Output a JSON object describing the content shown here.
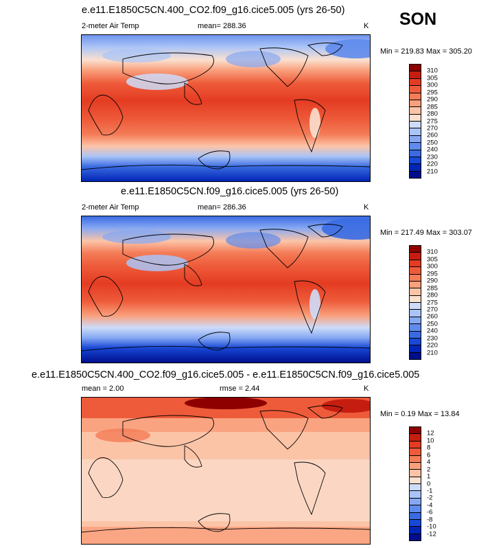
{
  "season": "SON",
  "colors": {
    "abs": [
      "#000e8c",
      "#0025b5",
      "#1848d6",
      "#3a6be2",
      "#5f8bec",
      "#86a8f2",
      "#aac4f7",
      "#cedcf9",
      "#fbe0cf",
      "#fcc4a7",
      "#f9a07d",
      "#f47c58",
      "#ee5b3a",
      "#e43c22",
      "#c51e10",
      "#8e0000"
    ],
    "diff": [
      "#000e8c",
      "#0025b5",
      "#1848d6",
      "#3a6be2",
      "#5f8bec",
      "#86a8f2",
      "#aac4f7",
      "#cedcf9",
      "#fbe0cf",
      "#fcc4a7",
      "#f9a07d",
      "#f47c58",
      "#ee5b3a",
      "#e43c22",
      "#c51e10",
      "#8e0000"
    ]
  },
  "panels": [
    {
      "title": "e.e11.E1850C5CN.400_CO2.f09_g16.cice5.005 (yrs 26-50)",
      "left_label": "2-meter Air Temp",
      "mean_label": "mean= 288.36",
      "units": "K",
      "minmax": "Min = 219.83 Max = 305.20",
      "colorbar_levels": [
        "310",
        "305",
        "300",
        "295",
        "290",
        "285",
        "280",
        "275",
        "270",
        "260",
        "250",
        "240",
        "230",
        "220",
        "210"
      ]
    },
    {
      "title": "e.e11.E1850C5CN.f09_g16.cice5.005 (yrs 26-50)",
      "left_label": "2-meter Air Temp",
      "mean_label": "mean= 286.36",
      "units": "K",
      "minmax": "Min = 217.49 Max = 303.07",
      "colorbar_levels": [
        "310",
        "305",
        "300",
        "295",
        "290",
        "285",
        "280",
        "275",
        "270",
        "260",
        "250",
        "240",
        "230",
        "220",
        "210"
      ]
    },
    {
      "title": "e.e11.E1850C5CN.400_CO2.f09_g16.cice5.005 - e.e11.E1850C5CN.f09_g16.cice5.005",
      "left_label": "mean =   2.00",
      "mean_label": "rmse =   2.44",
      "units": "K",
      "minmax": "Min =  0.19 Max =  13.84",
      "colorbar_levels": [
        "12",
        "10",
        "8",
        "6",
        "4",
        "2",
        "1",
        "0",
        "-1",
        "-2",
        "-4",
        "-6",
        "-8",
        "-10",
        "-12"
      ]
    }
  ]
}
